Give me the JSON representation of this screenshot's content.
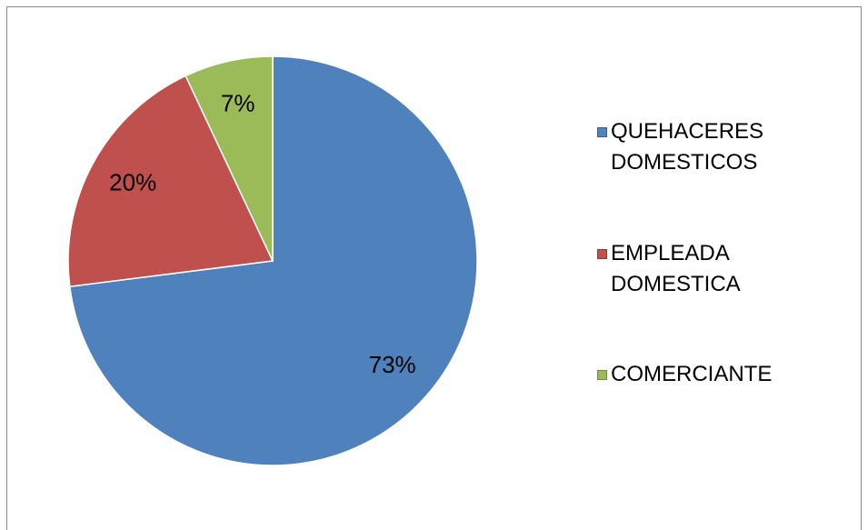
{
  "chart_data": {
    "type": "pie",
    "categories": [
      "QUEHACERES DOMESTICOS",
      "EMPLEADA DOMESTICA",
      "COMERCIANTE"
    ],
    "values": [
      73,
      20,
      7
    ],
    "value_labels": [
      "73%",
      "20%",
      "7%"
    ],
    "colors": [
      "#4f81bd",
      "#c0504d",
      "#9bbb59"
    ],
    "legend": "right"
  }
}
